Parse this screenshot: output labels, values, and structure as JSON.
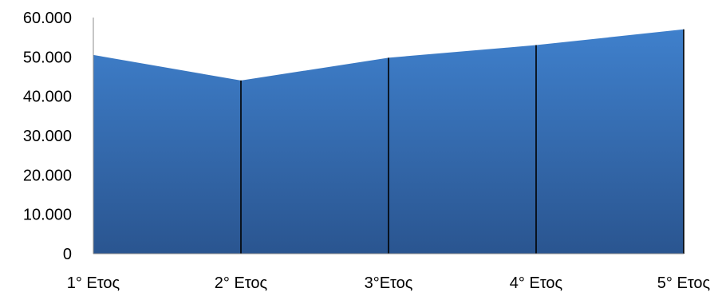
{
  "chart_data": {
    "type": "area",
    "categories": [
      "1° Ετος",
      "2° Ετος",
      "3°Ετος",
      "4° Ετος",
      "5° Ετος"
    ],
    "values": [
      50500,
      44000,
      49800,
      53000,
      57000
    ],
    "ylim": [
      0,
      60000
    ],
    "yticks": [
      "0",
      "10.000",
      "20.000",
      "30.000",
      "40.000",
      "50.000",
      "60.000"
    ],
    "grid": false,
    "legend": "none",
    "colors": {
      "fill_top": "#3f80cc",
      "fill_bottom": "#2a5590",
      "axis": "#8c8c8c",
      "drop_lines": "#000000"
    }
  }
}
